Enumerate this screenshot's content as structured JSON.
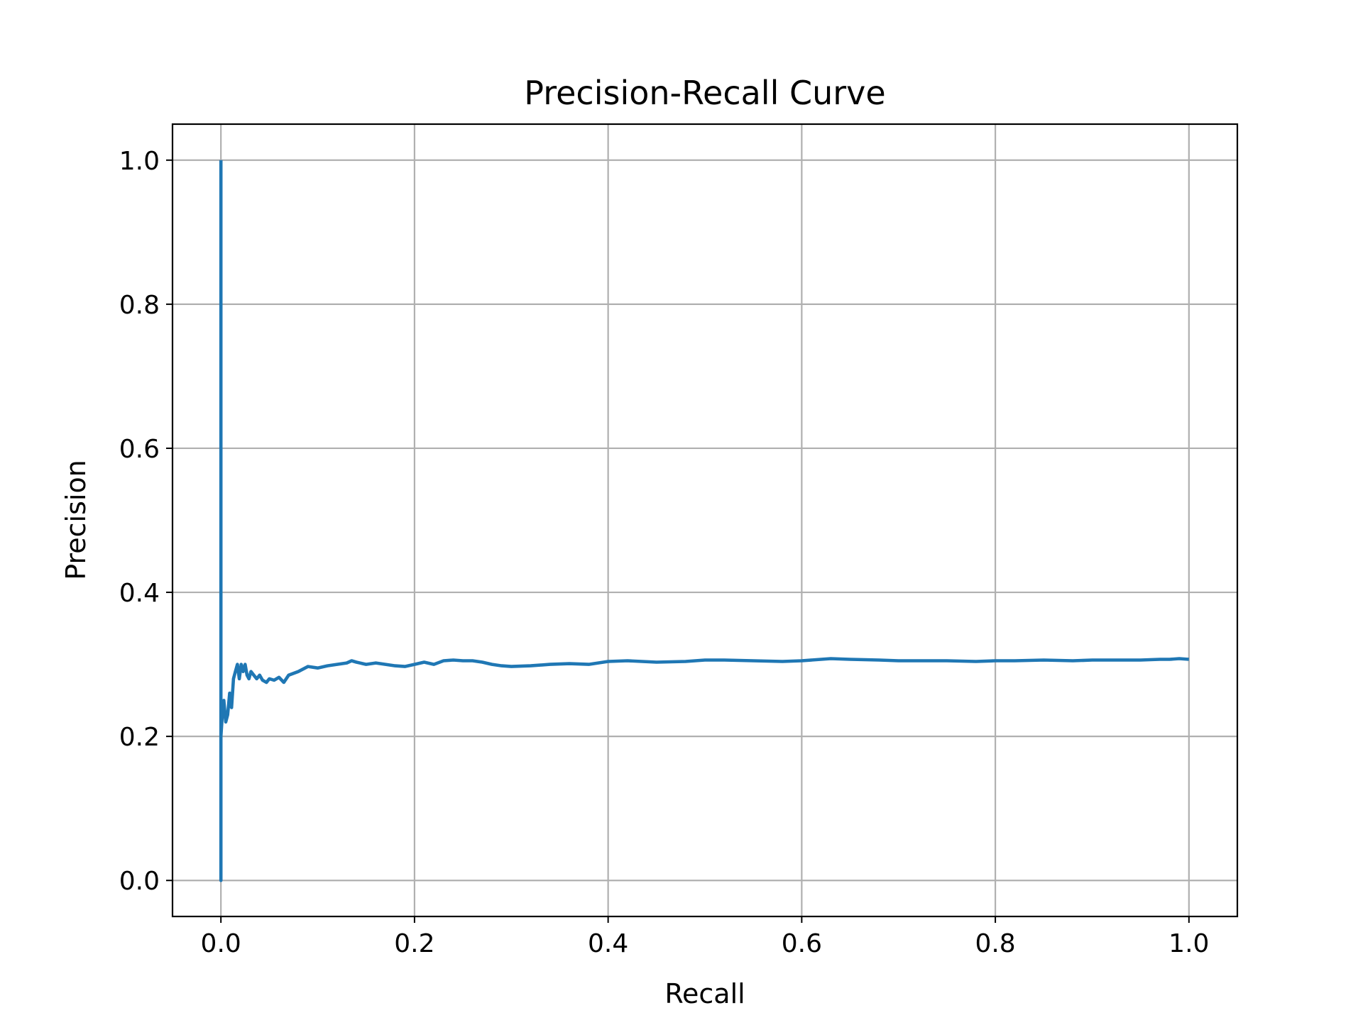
{
  "chart_data": {
    "type": "line",
    "title": "Precision-Recall Curve",
    "xlabel": "Recall",
    "ylabel": "Precision",
    "xlim": [
      -0.05,
      1.05
    ],
    "ylim": [
      -0.05,
      1.05
    ],
    "xticks": [
      0.0,
      0.2,
      0.4,
      0.6,
      0.8,
      1.0
    ],
    "xtick_labels": [
      "0.0",
      "0.2",
      "0.4",
      "0.6",
      "0.8",
      "1.0"
    ],
    "yticks": [
      0.0,
      0.2,
      0.4,
      0.6,
      0.8,
      1.0
    ],
    "ytick_labels": [
      "0.0",
      "0.2",
      "0.4",
      "0.6",
      "0.8",
      "1.0"
    ],
    "grid": true,
    "legend": "none",
    "colors": {
      "series": "#1f77b4",
      "grid": "#b0b0b0",
      "axes": "#000000"
    },
    "series": [
      {
        "x": [
          0.0,
          0.0,
          0.0,
          0.0,
          0.0,
          0.001,
          0.002,
          0.003,
          0.005,
          0.007,
          0.009,
          0.011,
          0.013,
          0.015,
          0.017,
          0.019,
          0.021,
          0.023,
          0.025,
          0.027,
          0.029,
          0.031,
          0.034,
          0.037,
          0.04,
          0.043,
          0.047,
          0.05,
          0.055,
          0.06,
          0.065,
          0.07,
          0.08,
          0.09,
          0.1,
          0.11,
          0.12,
          0.13,
          0.135,
          0.14,
          0.15,
          0.16,
          0.17,
          0.18,
          0.19,
          0.2,
          0.21,
          0.22,
          0.23,
          0.24,
          0.25,
          0.26,
          0.27,
          0.28,
          0.29,
          0.3,
          0.32,
          0.34,
          0.36,
          0.38,
          0.4,
          0.42,
          0.45,
          0.48,
          0.5,
          0.52,
          0.55,
          0.58,
          0.6,
          0.62,
          0.63,
          0.65,
          0.68,
          0.7,
          0.72,
          0.75,
          0.78,
          0.8,
          0.82,
          0.85,
          0.88,
          0.9,
          0.92,
          0.95,
          0.97,
          0.98,
          0.99,
          1.0
        ],
        "y": [
          1.0,
          0.33,
          0.0,
          0.1,
          0.2,
          0.22,
          0.24,
          0.25,
          0.22,
          0.23,
          0.26,
          0.24,
          0.28,
          0.29,
          0.3,
          0.28,
          0.3,
          0.29,
          0.3,
          0.285,
          0.28,
          0.29,
          0.285,
          0.28,
          0.285,
          0.278,
          0.275,
          0.28,
          0.278,
          0.282,
          0.275,
          0.285,
          0.29,
          0.297,
          0.295,
          0.298,
          0.3,
          0.302,
          0.305,
          0.303,
          0.3,
          0.302,
          0.3,
          0.298,
          0.297,
          0.3,
          0.303,
          0.3,
          0.305,
          0.306,
          0.305,
          0.305,
          0.303,
          0.3,
          0.298,
          0.297,
          0.298,
          0.3,
          0.301,
          0.3,
          0.304,
          0.305,
          0.303,
          0.304,
          0.306,
          0.306,
          0.305,
          0.304,
          0.305,
          0.307,
          0.308,
          0.307,
          0.306,
          0.305,
          0.305,
          0.305,
          0.304,
          0.305,
          0.305,
          0.306,
          0.305,
          0.306,
          0.306,
          0.306,
          0.307,
          0.307,
          0.308,
          0.307
        ]
      }
    ]
  }
}
